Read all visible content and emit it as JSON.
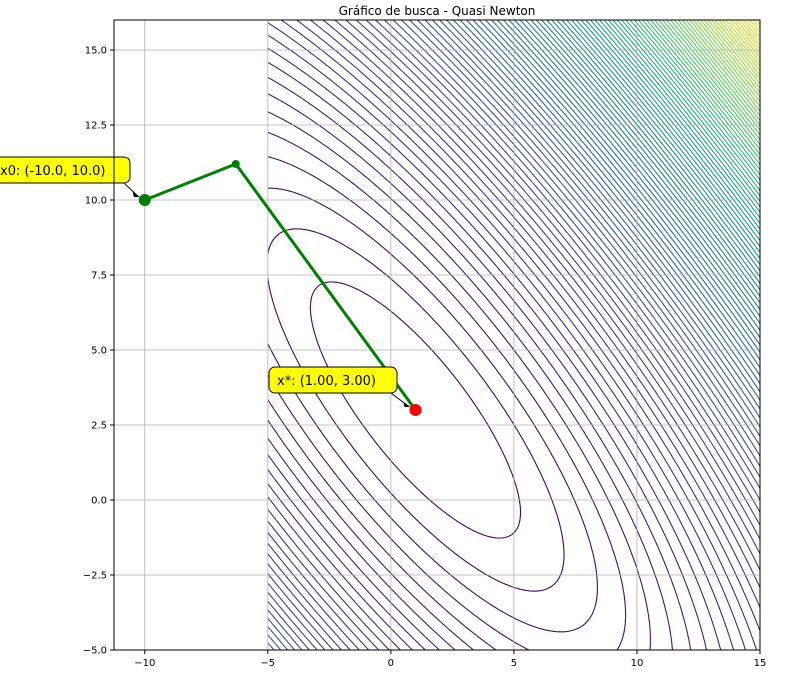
{
  "chart_data": {
    "type": "line",
    "title": "Gráfico de busca - Quasi Newton",
    "xlabel": "",
    "ylabel": "",
    "xlim": [
      -11.2,
      15
    ],
    "ylim": [
      -5.0,
      16.0
    ],
    "grid": true,
    "x_ticks": [
      {
        "value": -10,
        "label": "−10"
      },
      {
        "value": -5,
        "label": "−5"
      },
      {
        "value": 0,
        "label": "0"
      },
      {
        "value": 5,
        "label": "5"
      },
      {
        "value": 10,
        "label": "10"
      },
      {
        "value": 15,
        "label": "15"
      }
    ],
    "y_ticks": [
      {
        "value": -5.0,
        "label": "−5.0"
      },
      {
        "value": -2.5,
        "label": "−2.5"
      },
      {
        "value": 0.0,
        "label": "0.0"
      },
      {
        "value": 2.5,
        "label": "2.5"
      },
      {
        "value": 5.0,
        "label": "5.0"
      },
      {
        "value": 7.5,
        "label": "7.5"
      },
      {
        "value": 10.0,
        "label": "10.0"
      },
      {
        "value": 12.5,
        "label": "12.5"
      },
      {
        "value": 15.0,
        "label": "15.0"
      }
    ],
    "contour": {
      "function": "Booth: (x + 2y - 7)^2 + (2x + y - 5)^2",
      "x_range": [
        -5,
        15
      ],
      "y_range": [
        -5,
        16
      ],
      "minimum": [
        1,
        3
      ],
      "colormap": "viridis"
    },
    "path": {
      "x": [
        -10.0,
        -6.3,
        1.0
      ],
      "y": [
        10.0,
        11.2,
        3.0
      ],
      "color": "#008000"
    },
    "start_point": {
      "x": -10.0,
      "y": 10.0,
      "color": "#008000",
      "annotation": "x0: (-10.0, 10.0)"
    },
    "end_point": {
      "x": 1.0,
      "y": 3.0,
      "color": "#ff0000",
      "annotation": "x*: (1.00, 3.00)"
    },
    "annotation_box_color": "#ffff00"
  }
}
